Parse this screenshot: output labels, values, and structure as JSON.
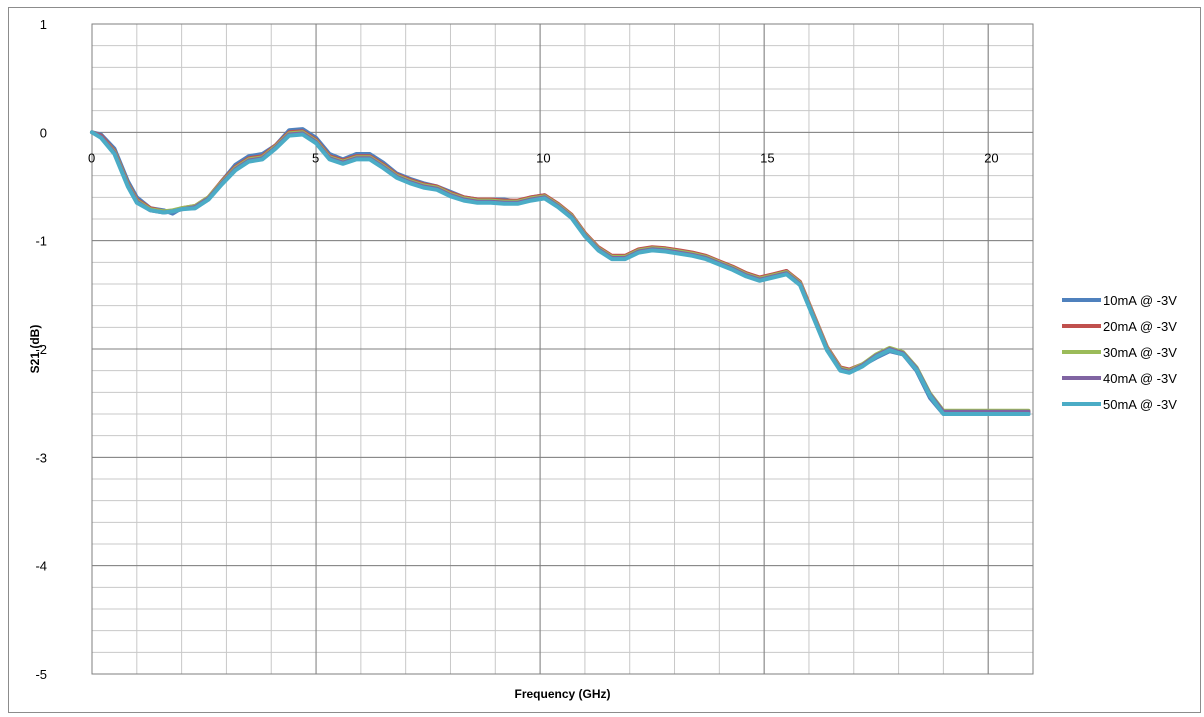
{
  "chart_data": {
    "type": "line",
    "title": "",
    "xlabel": "Frequency (GHz)",
    "ylabel": "S21 (dB)",
    "xlim": [
      0,
      21
    ],
    "ylim": [
      -5,
      1
    ],
    "xticks": [
      0,
      5,
      10,
      15,
      20
    ],
    "yticks": [
      1,
      0,
      -1,
      -2,
      -3,
      -4,
      -5
    ],
    "x_minor_step": 1,
    "y_minor_step": 0.2,
    "grid": true,
    "legend_position": "right",
    "x": [
      0,
      0.2,
      0.5,
      0.8,
      1.0,
      1.3,
      1.6,
      1.8,
      2.0,
      2.3,
      2.6,
      2.9,
      3.2,
      3.5,
      3.8,
      4.1,
      4.4,
      4.7,
      5.0,
      5.3,
      5.6,
      5.9,
      6.2,
      6.5,
      6.8,
      7.1,
      7.4,
      7.7,
      8.0,
      8.3,
      8.6,
      8.9,
      9.2,
      9.5,
      9.8,
      10.1,
      10.4,
      10.7,
      11.0,
      11.3,
      11.6,
      11.9,
      12.2,
      12.5,
      12.8,
      13.1,
      13.4,
      13.7,
      14.0,
      14.3,
      14.6,
      14.9,
      15.2,
      15.5,
      15.8,
      16.1,
      16.4,
      16.7,
      16.9,
      17.2,
      17.5,
      17.8,
      18.1,
      18.4,
      18.7,
      19.0,
      19.3,
      19.6,
      19.9,
      20.2,
      20.5,
      20.9
    ],
    "series": [
      {
        "name": "10mA @ -3V",
        "color": "#4f81bd",
        "values": [
          0.0,
          -0.02,
          -0.15,
          -0.45,
          -0.6,
          -0.7,
          -0.72,
          -0.75,
          -0.7,
          -0.7,
          -0.62,
          -0.45,
          -0.3,
          -0.22,
          -0.2,
          -0.12,
          0.02,
          0.03,
          -0.05,
          -0.2,
          -0.25,
          -0.2,
          -0.2,
          -0.28,
          -0.38,
          -0.43,
          -0.47,
          -0.5,
          -0.55,
          -0.6,
          -0.62,
          -0.62,
          -0.62,
          -0.64,
          -0.6,
          -0.58,
          -0.68,
          -0.78,
          -0.95,
          -1.08,
          -1.15,
          -1.15,
          -1.1,
          -1.08,
          -1.08,
          -1.1,
          -1.12,
          -1.15,
          -1.2,
          -1.25,
          -1.3,
          -1.35,
          -1.32,
          -1.28,
          -1.4,
          -1.7,
          -2.0,
          -2.18,
          -2.2,
          -2.15,
          -2.08,
          -2.02,
          -2.05,
          -2.2,
          -2.45,
          -2.6,
          -2.6,
          -2.6,
          -2.6,
          -2.6,
          -2.6,
          -2.6
        ]
      },
      {
        "name": "20mA @ -3V",
        "color": "#c0504d",
        "values": [
          0.0,
          -0.03,
          -0.17,
          -0.47,
          -0.62,
          -0.7,
          -0.73,
          -0.73,
          -0.7,
          -0.68,
          -0.6,
          -0.45,
          -0.32,
          -0.24,
          -0.22,
          -0.12,
          0.0,
          0.01,
          -0.07,
          -0.22,
          -0.26,
          -0.22,
          -0.22,
          -0.3,
          -0.39,
          -0.44,
          -0.48,
          -0.5,
          -0.56,
          -0.6,
          -0.62,
          -0.62,
          -0.63,
          -0.63,
          -0.6,
          -0.58,
          -0.66,
          -0.76,
          -0.93,
          -1.06,
          -1.14,
          -1.14,
          -1.08,
          -1.06,
          -1.07,
          -1.09,
          -1.11,
          -1.14,
          -1.19,
          -1.24,
          -1.3,
          -1.34,
          -1.31,
          -1.28,
          -1.38,
          -1.68,
          -1.98,
          -2.17,
          -2.19,
          -2.14,
          -2.06,
          -2.0,
          -2.04,
          -2.18,
          -2.42,
          -2.58,
          -2.58,
          -2.58,
          -2.58,
          -2.58,
          -2.58,
          -2.58
        ]
      },
      {
        "name": "30mA @ -3V",
        "color": "#9bbb59",
        "values": [
          0.0,
          -0.04,
          -0.18,
          -0.48,
          -0.63,
          -0.71,
          -0.73,
          -0.72,
          -0.7,
          -0.68,
          -0.6,
          -0.46,
          -0.33,
          -0.25,
          -0.23,
          -0.13,
          -0.01,
          0.0,
          -0.08,
          -0.23,
          -0.27,
          -0.23,
          -0.23,
          -0.31,
          -0.4,
          -0.45,
          -0.49,
          -0.51,
          -0.57,
          -0.61,
          -0.63,
          -0.63,
          -0.64,
          -0.64,
          -0.61,
          -0.59,
          -0.67,
          -0.77,
          -0.94,
          -1.07,
          -1.15,
          -1.15,
          -1.09,
          -1.07,
          -1.08,
          -1.1,
          -1.12,
          -1.15,
          -1.2,
          -1.25,
          -1.31,
          -1.35,
          -1.32,
          -1.29,
          -1.39,
          -1.69,
          -1.99,
          -2.18,
          -2.2,
          -2.14,
          -2.05,
          -1.99,
          -2.03,
          -2.17,
          -2.41,
          -2.57,
          -2.57,
          -2.57,
          -2.57,
          -2.57,
          -2.57,
          -2.57
        ]
      },
      {
        "name": "40mA @ -3V",
        "color": "#8064a2",
        "values": [
          0.0,
          -0.04,
          -0.19,
          -0.49,
          -0.64,
          -0.72,
          -0.74,
          -0.73,
          -0.71,
          -0.69,
          -0.61,
          -0.47,
          -0.34,
          -0.26,
          -0.24,
          -0.14,
          -0.02,
          -0.01,
          -0.09,
          -0.24,
          -0.28,
          -0.24,
          -0.24,
          -0.32,
          -0.41,
          -0.46,
          -0.5,
          -0.52,
          -0.58,
          -0.62,
          -0.64,
          -0.64,
          -0.65,
          -0.65,
          -0.62,
          -0.6,
          -0.68,
          -0.78,
          -0.95,
          -1.08,
          -1.16,
          -1.16,
          -1.1,
          -1.08,
          -1.09,
          -1.11,
          -1.13,
          -1.16,
          -1.21,
          -1.26,
          -1.32,
          -1.36,
          -1.33,
          -1.3,
          -1.4,
          -1.7,
          -2.0,
          -2.19,
          -2.21,
          -2.15,
          -2.06,
          -2.0,
          -2.04,
          -2.18,
          -2.42,
          -2.58,
          -2.58,
          -2.58,
          -2.58,
          -2.58,
          -2.58,
          -2.58
        ]
      },
      {
        "name": "50mA @ -3V",
        "color": "#4bacc6",
        "values": [
          0.0,
          -0.05,
          -0.2,
          -0.5,
          -0.65,
          -0.72,
          -0.74,
          -0.73,
          -0.71,
          -0.7,
          -0.62,
          -0.48,
          -0.35,
          -0.27,
          -0.25,
          -0.15,
          -0.03,
          -0.02,
          -0.1,
          -0.25,
          -0.29,
          -0.25,
          -0.25,
          -0.33,
          -0.42,
          -0.47,
          -0.51,
          -0.53,
          -0.59,
          -0.63,
          -0.65,
          -0.65,
          -0.66,
          -0.66,
          -0.63,
          -0.61,
          -0.69,
          -0.79,
          -0.96,
          -1.09,
          -1.17,
          -1.17,
          -1.11,
          -1.09,
          -1.1,
          -1.12,
          -1.14,
          -1.17,
          -1.22,
          -1.27,
          -1.33,
          -1.37,
          -1.34,
          -1.31,
          -1.41,
          -1.71,
          -2.01,
          -2.2,
          -2.22,
          -2.16,
          -2.07,
          -2.01,
          -2.05,
          -2.19,
          -2.43,
          -2.6,
          -2.6,
          -2.6,
          -2.6,
          -2.6,
          -2.6,
          -2.6
        ]
      }
    ]
  }
}
